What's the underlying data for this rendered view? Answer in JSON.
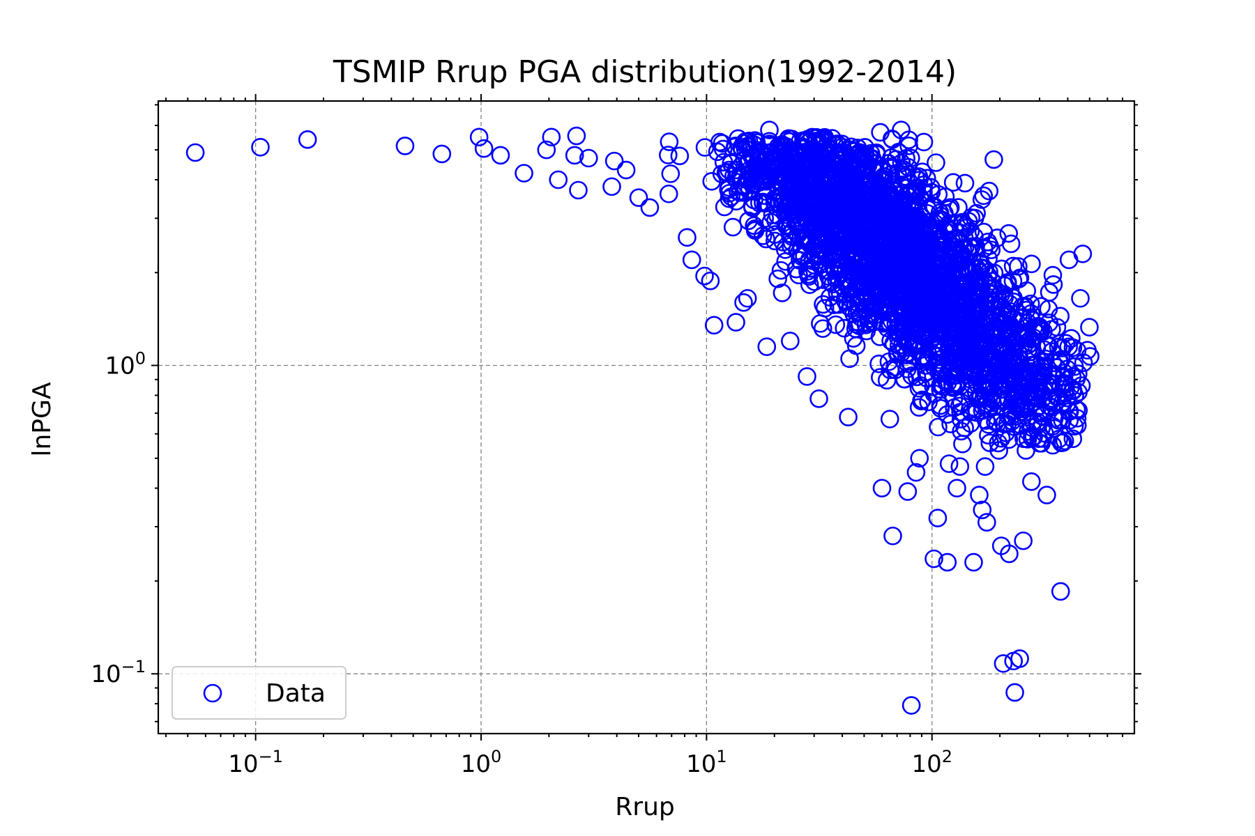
{
  "chart_data": {
    "type": "scatter",
    "title": "TSMIP Rrup PGA distribution(1992-2014)",
    "xlabel": "Rrup",
    "ylabel": "lnPGA",
    "xscale": "log",
    "yscale": "log",
    "xlim": [
      0.037,
      790
    ],
    "ylim": [
      0.064,
      7.2
    ],
    "x_ticks": [
      {
        "base": "10",
        "exp": "−1",
        "value": 0.1
      },
      {
        "base": "10",
        "exp": "0",
        "value": 1
      },
      {
        "base": "10",
        "exp": "1",
        "value": 10
      },
      {
        "base": "10",
        "exp": "2",
        "value": 100
      }
    ],
    "y_ticks": [
      {
        "base": "10",
        "exp": "−1",
        "value": 0.1
      },
      {
        "base": "10",
        "exp": "0",
        "value": 1
      }
    ],
    "grid": true,
    "legend_position": "lower-left",
    "colors": {
      "series": "#0000ff",
      "grid": "#808080"
    },
    "series": [
      {
        "name": "Data",
        "marker": "open-circle",
        "points": [
          [
            0.054,
            4.9
          ],
          [
            0.105,
            5.1
          ],
          [
            0.17,
            5.4
          ],
          [
            0.46,
            5.15
          ],
          [
            0.67,
            4.85
          ],
          [
            0.98,
            5.5
          ],
          [
            1.03,
            5.05
          ],
          [
            1.22,
            4.8
          ],
          [
            1.55,
            4.2
          ],
          [
            1.95,
            5.0
          ],
          [
            2.05,
            5.5
          ],
          [
            2.2,
            4.0
          ],
          [
            2.6,
            4.8
          ],
          [
            2.65,
            5.55
          ],
          [
            2.7,
            3.7
          ],
          [
            3.0,
            4.7
          ],
          [
            3.8,
            3.8
          ],
          [
            3.9,
            4.6
          ],
          [
            4.4,
            4.3
          ],
          [
            5.0,
            3.5
          ],
          [
            5.6,
            3.25
          ],
          [
            6.8,
            3.6
          ],
          [
            8.2,
            2.6
          ],
          [
            8.6,
            2.2
          ],
          [
            9.8,
            1.95
          ],
          [
            10.4,
            1.88
          ],
          [
            10.8,
            1.35
          ],
          [
            13.5,
            1.38
          ],
          [
            14.6,
            1.6
          ],
          [
            15.2,
            1.65
          ],
          [
            18.5,
            1.15
          ],
          [
            19.0,
            5.8
          ],
          [
            23.5,
            1.2
          ],
          [
            31.5,
            0.78
          ],
          [
            42.5,
            0.68
          ],
          [
            59.0,
            5.7
          ],
          [
            60.0,
            0.4
          ],
          [
            65.0,
            0.67
          ],
          [
            67.0,
            0.28
          ],
          [
            73.0,
            5.8
          ],
          [
            78.0,
            0.39
          ],
          [
            81.0,
            0.079
          ],
          [
            85.0,
            0.45
          ],
          [
            88.0,
            0.5
          ],
          [
            92.0,
            5.3
          ],
          [
            102.0,
            0.236
          ],
          [
            106.0,
            0.32
          ],
          [
            117.0,
            0.23
          ],
          [
            119.0,
            0.48
          ],
          [
            129.0,
            0.4
          ],
          [
            133.0,
            0.47
          ],
          [
            153.0,
            0.23
          ],
          [
            162.0,
            0.38
          ],
          [
            167.0,
            0.34
          ],
          [
            175.0,
            0.31
          ],
          [
            172.0,
            0.47
          ],
          [
            188.0,
            4.65
          ],
          [
            198.0,
            0.53
          ],
          [
            203.0,
            0.26
          ],
          [
            207.0,
            0.108
          ],
          [
            220.0,
            0.245
          ],
          [
            230.0,
            0.11
          ],
          [
            233.0,
            0.087
          ],
          [
            245.0,
            0.112
          ],
          [
            254.0,
            0.27
          ],
          [
            261.0,
            0.53
          ],
          [
            276.0,
            0.42
          ],
          [
            315.0,
            0.7
          ],
          [
            323.0,
            0.38
          ],
          [
            372.0,
            0.185
          ],
          [
            455.0,
            1.65
          ],
          [
            460.0,
            0.86
          ],
          [
            470.0,
            1.02
          ],
          [
            489.0,
            1.12
          ],
          [
            499.0,
            1.33
          ],
          [
            503.0,
            1.07
          ],
          [
            466.0,
            2.3
          ],
          [
            405.0,
            2.2
          ]
        ]
      }
    ],
    "dense_cloud": {
      "x_range": [
        5,
        450
      ],
      "y_range": [
        0.55,
        5.5
      ],
      "center_x": 65,
      "center_y": 2.3,
      "trend": "lnPGA decreases as Rrup increases"
    }
  },
  "legend": {
    "label": "Data"
  }
}
